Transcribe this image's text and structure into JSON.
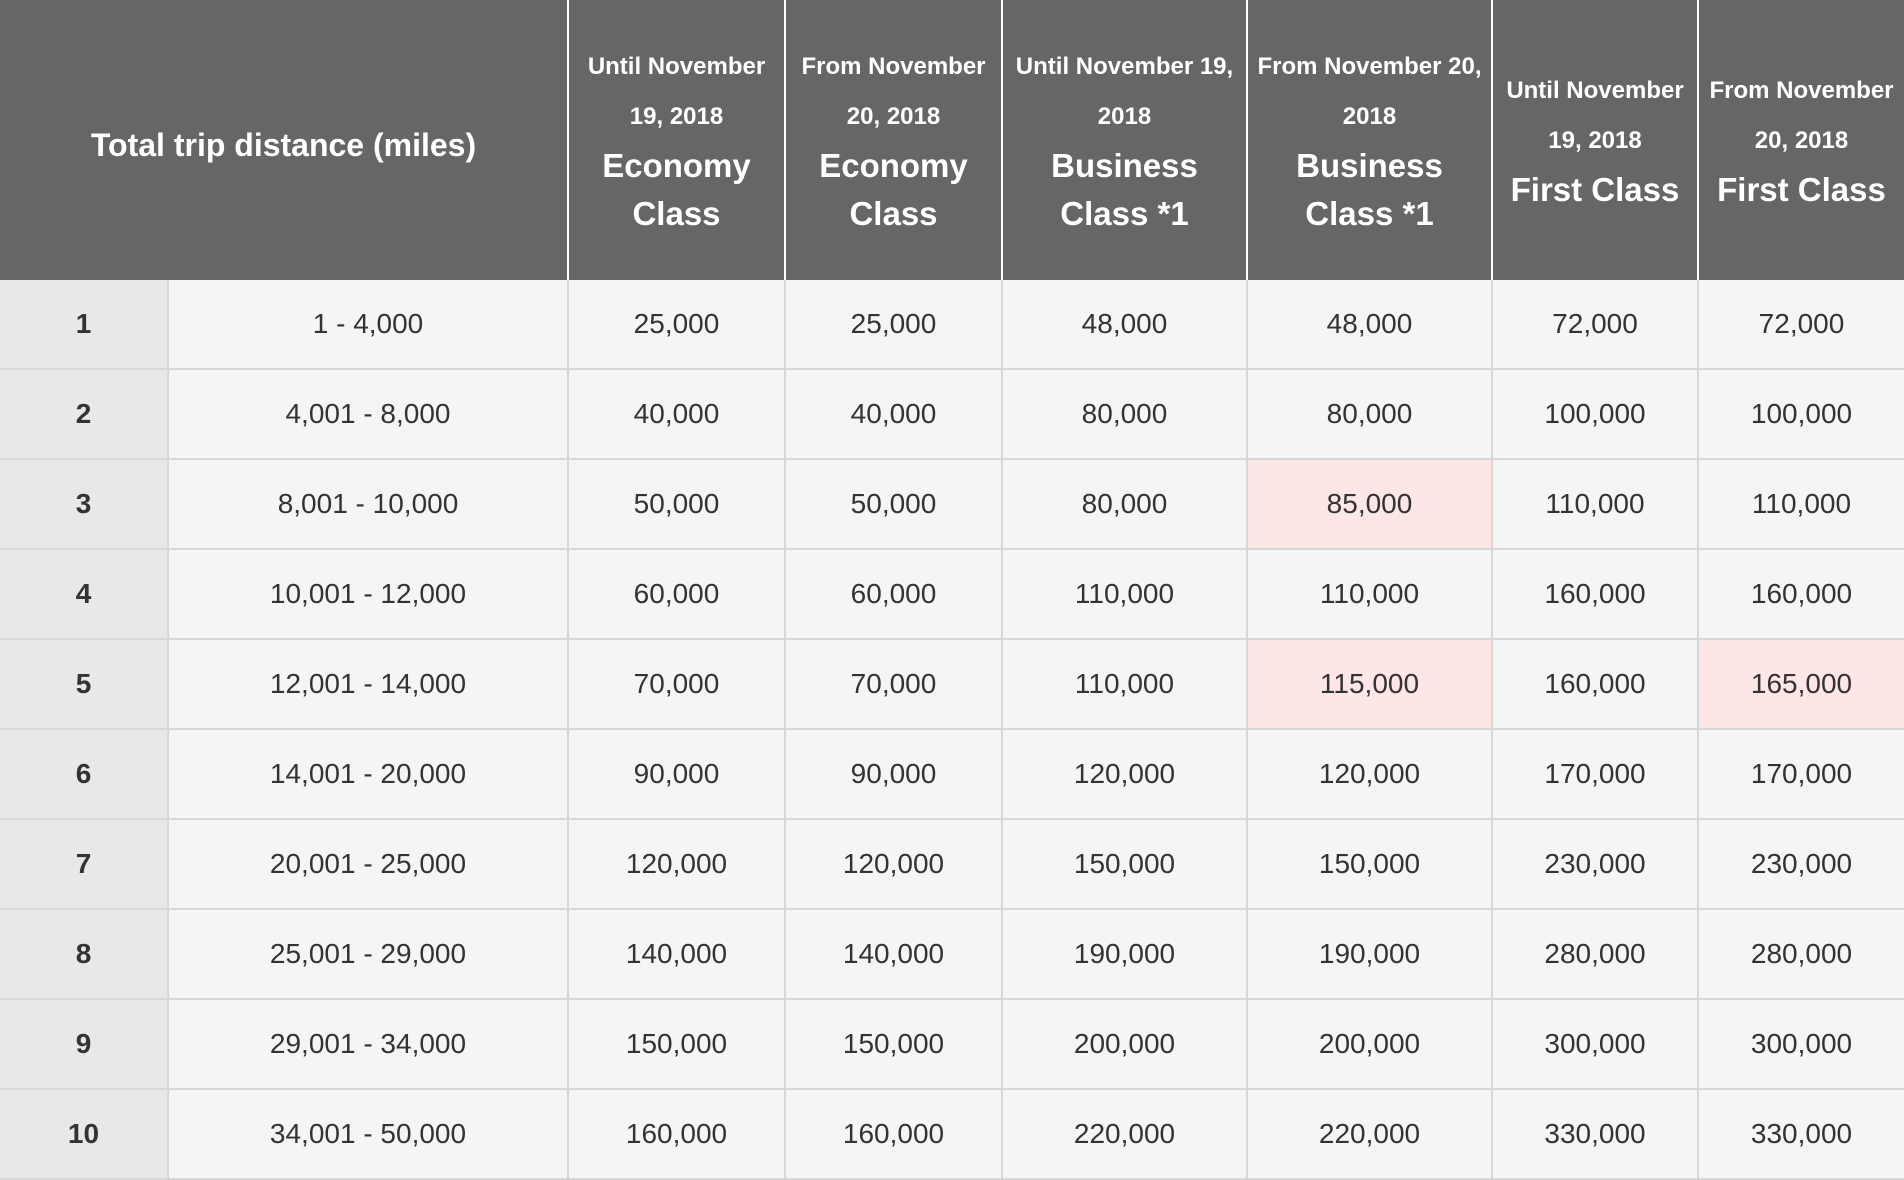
{
  "table": {
    "distance_header": "Total trip distance (miles)",
    "columns": [
      {
        "period": "Until November 19, 2018",
        "cabin": "Economy Class"
      },
      {
        "period": "From November 20, 2018",
        "cabin": "Economy Class"
      },
      {
        "period": "Until November 19, 2018",
        "cabin": "Business Class *1"
      },
      {
        "period": "From November 20, 2018",
        "cabin": "Business Class *1"
      },
      {
        "period": "Until November 19, 2018",
        "cabin": "First Class"
      },
      {
        "period": "From November 20, 2018",
        "cabin": "First Class"
      }
    ],
    "rows": [
      {
        "num": "1",
        "distance": "1 - 4,000",
        "values": [
          "25,000",
          "25,000",
          "48,000",
          "48,000",
          "72,000",
          "72,000"
        ]
      },
      {
        "num": "2",
        "distance": "4,001 - 8,000",
        "values": [
          "40,000",
          "40,000",
          "80,000",
          "80,000",
          "100,000",
          "100,000"
        ]
      },
      {
        "num": "3",
        "distance": "8,001 - 10,000",
        "values": [
          "50,000",
          "50,000",
          "80,000",
          "85,000",
          "110,000",
          "110,000"
        ]
      },
      {
        "num": "4",
        "distance": "10,001 - 12,000",
        "values": [
          "60,000",
          "60,000",
          "110,000",
          "110,000",
          "160,000",
          "160,000"
        ]
      },
      {
        "num": "5",
        "distance": "12,001 - 14,000",
        "values": [
          "70,000",
          "70,000",
          "110,000",
          "115,000",
          "160,000",
          "165,000"
        ]
      },
      {
        "num": "6",
        "distance": "14,001 - 20,000",
        "values": [
          "90,000",
          "90,000",
          "120,000",
          "120,000",
          "170,000",
          "170,000"
        ]
      },
      {
        "num": "7",
        "distance": "20,001 - 25,000",
        "values": [
          "120,000",
          "120,000",
          "150,000",
          "150,000",
          "230,000",
          "230,000"
        ]
      },
      {
        "num": "8",
        "distance": "25,001 - 29,000",
        "values": [
          "140,000",
          "140,000",
          "190,000",
          "190,000",
          "280,000",
          "280,000"
        ]
      },
      {
        "num": "9",
        "distance": "29,001 - 34,000",
        "values": [
          "150,000",
          "150,000",
          "200,000",
          "200,000",
          "300,000",
          "300,000"
        ]
      },
      {
        "num": "10",
        "distance": "34,001 - 50,000",
        "values": [
          "160,000",
          "160,000",
          "220,000",
          "220,000",
          "330,000",
          "330,000"
        ]
      }
    ],
    "highlighted_cells": [
      {
        "row": 3,
        "column": 4
      },
      {
        "row": 5,
        "column": 4
      },
      {
        "row": 5,
        "column": 6
      }
    ],
    "colors": {
      "header_bg": "#666666",
      "header_text": "#ffffff",
      "row_bg": "#f5f5f5",
      "row_num_bg": "#e8e8e8",
      "highlight_bg": "#fde6e6",
      "grid": "#d8d8d8"
    }
  }
}
